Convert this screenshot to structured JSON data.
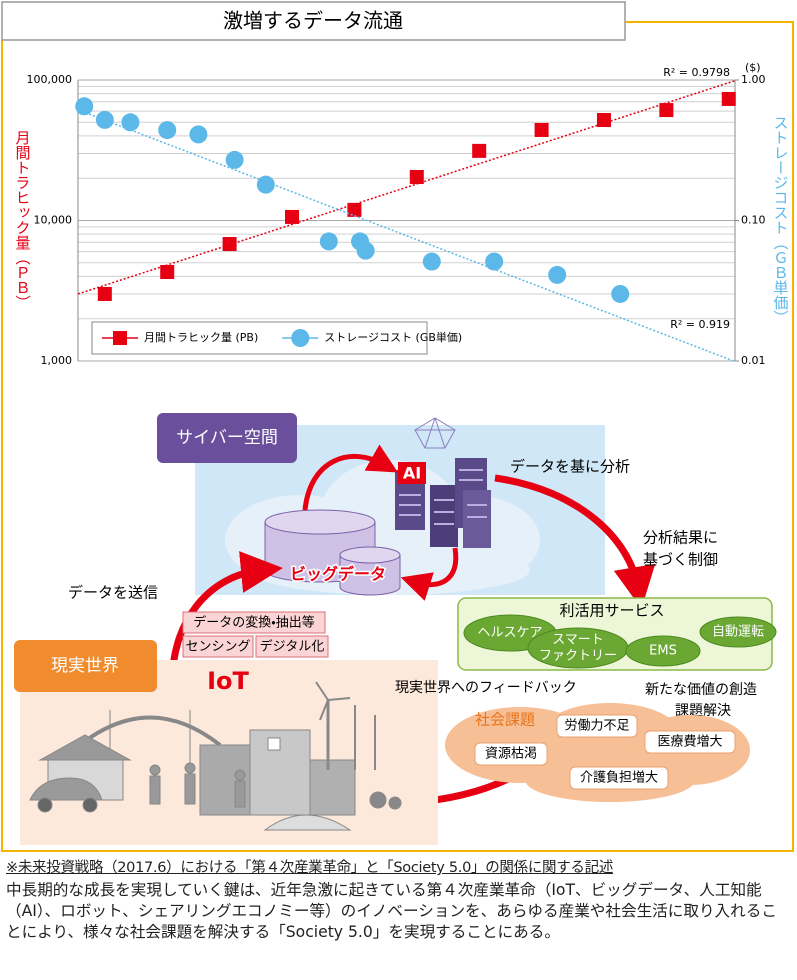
{
  "title": "激増するデータ流通",
  "chart_data": {
    "type": "scatter",
    "log_y": true,
    "grid": true,
    "minor_grid": true,
    "legend": "lower left",
    "y_label": "月間トラヒック量（ＰＢ）",
    "y2_label": "ストレージコスト（ＧＢ単価）",
    "y2_unit": "($)",
    "trendline": true,
    "annotations": [
      "R² = 0.9798",
      "R² = 0.919"
    ],
    "xlim": [
      0.57,
      11.1
    ],
    "ylim": [
      1000,
      100000
    ],
    "yticks": [
      {
        "value": 1000,
        "label": "1,000"
      },
      {
        "value": 10000,
        "label": "10,000"
      },
      {
        "value": 100000,
        "label": "100,000"
      }
    ],
    "y2lim": [
      0.01,
      1
    ],
    "y2ticks": [
      0.01,
      {
        "value": 0.1,
        "label": "0.10"
      },
      {
        "value": 1,
        "label": "1.00"
      }
    ],
    "series": [
      {
        "name": "月間トラヒック量 (PB)",
        "color": "#e60012",
        "marker": "square",
        "x": [
          1,
          2,
          3,
          4,
          5,
          6,
          7,
          8,
          9,
          10,
          11
        ],
        "values": [
          3000,
          4300,
          6800,
          10600,
          11900,
          20400,
          31300,
          44100,
          51900,
          61100,
          73300
        ]
      },
      {
        "name": "ストレージコスト (GB単価)",
        "color": "#5bb8e8",
        "marker": "circle",
        "axis": "y2",
        "x": [
          0.67,
          1.0,
          1.41,
          2.0,
          2.5,
          3.08,
          3.58,
          4.59,
          5.09,
          5.18,
          6.24,
          7.24,
          8.25,
          9.26
        ],
        "values": [
          0.65,
          0.52,
          0.5,
          0.44,
          0.41,
          0.27,
          0.18,
          0.071,
          0.071,
          0.061,
          0.051,
          0.051,
          0.041,
          0.03
        ]
      }
    ]
  },
  "diagram": {
    "cyber_space": "サイバー空間",
    "real_world": "現実世界",
    "big_data": "ビッグデータ",
    "ai": "AI",
    "iot": "IoT",
    "analysis": "データを基に分析",
    "control": [
      "分析結果に",
      "基づく制御"
    ],
    "send": "データを送信",
    "iot_functions": [
      "データの変換・抽出等",
      "センシング",
      "デジタル化"
    ],
    "services": {
      "title": "利活用サービス",
      "items": [
        [
          "ヘルスケア"
        ],
        [
          "スマート",
          "ファクトリー"
        ],
        [
          "EMS"
        ],
        [
          "自動運転"
        ]
      ]
    },
    "feedback": "現実世界へのフィードバック",
    "value_creation": [
      "新たな価値の創造",
      "課題解決"
    ],
    "social_issues": {
      "title": "社会課題",
      "items": [
        "労働力不足",
        "資源枯渇",
        "医療費増大",
        "介護負担増大"
      ]
    }
  },
  "note": {
    "source": "※未来投資戦略（2017.6）における「第４次産業革命」と「Society 5.0」の関係に関する記述",
    "body": "中長期的な成長を実現していく鍵は、近年急激に起きている第４次産業革命（IoT、ビッグデータ、人工知能（AI）、ロボット、シェアリングエコノミー等）のイノベーションを、あらゆる産業や社会生活に取り入れることにより、様々な社会課題を解決する「Society 5.0」を実現することにある。"
  }
}
